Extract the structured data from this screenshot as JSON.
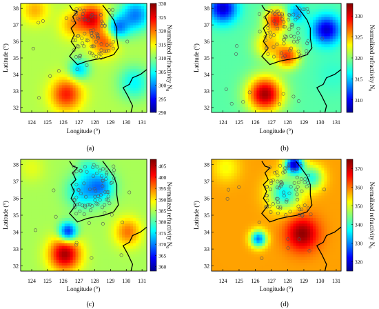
{
  "figure": {
    "panels": [
      {
        "label": "(a)",
        "colorbar_label": "Normalized refractivity N",
        "colorbar_subscript": "0"
      },
      {
        "label": "(b)",
        "colorbar_label": "Normalized refractivity N",
        "colorbar_subscript": "0"
      },
      {
        "label": "(c)",
        "colorbar_label": "Normalized refractivity N",
        "colorbar_subscript": "0"
      },
      {
        "label": "(d)",
        "colorbar_label": "Normalized refractivity N",
        "colorbar_subscript": "0"
      }
    ]
  },
  "chart_data": [
    {
      "type": "heatmap",
      "panel": "(a)",
      "xlabel": "Longitude (°)",
      "ylabel": "Latitude (°)",
      "xlim": [
        123.3,
        131.3
      ],
      "ylim": [
        31.7,
        38.3
      ],
      "xticks": [
        124,
        125,
        126,
        127,
        128,
        129,
        130,
        131
      ],
      "yticks": [
        32,
        33,
        34,
        35,
        36,
        37,
        38
      ],
      "colorbar": {
        "label": "Normalized refractivity N0",
        "min": 290,
        "max": 330,
        "ticks": [
          290,
          295,
          300,
          305,
          310,
          315,
          320,
          325,
          330
        ]
      },
      "baseline": 312,
      "hotspots": [
        {
          "lon": 126.2,
          "lat": 32.8,
          "value": 324,
          "spread": 0.7
        },
        {
          "lon": 127.8,
          "lat": 37.4,
          "value": 326,
          "spread": 0.6
        },
        {
          "lon": 128.6,
          "lat": 36.0,
          "value": 322,
          "spread": 0.6
        },
        {
          "lon": 126.6,
          "lat": 37.0,
          "value": 318,
          "spread": 0.6
        },
        {
          "lon": 129.4,
          "lat": 36.8,
          "value": 300,
          "spread": 0.5
        },
        {
          "lon": 130.6,
          "lat": 37.6,
          "value": 300,
          "spread": 0.7
        },
        {
          "lon": 127.0,
          "lat": 34.3,
          "value": 303,
          "spread": 0.45
        },
        {
          "lon": 124.2,
          "lat": 37.9,
          "value": 318,
          "spread": 0.6
        },
        {
          "lon": 130.5,
          "lat": 33.5,
          "value": 305,
          "spread": 0.7
        }
      ]
    },
    {
      "type": "heatmap",
      "panel": "(b)",
      "xlabel": "Longitude (°)",
      "ylabel": "Latitude (°)",
      "xlim": [
        123.3,
        131.3
      ],
      "ylim": [
        31.7,
        38.3
      ],
      "xticks": [
        124,
        125,
        126,
        127,
        128,
        129,
        130,
        131
      ],
      "yticks": [
        32,
        33,
        34,
        35,
        36,
        37,
        38
      ],
      "colorbar": {
        "label": "Normalized refractivity N0",
        "min": 307,
        "max": 333,
        "ticks": [
          310,
          315,
          320,
          325,
          330
        ]
      },
      "baseline": 319,
      "hotspots": [
        {
          "lon": 126.6,
          "lat": 32.8,
          "value": 332,
          "spread": 0.75
        },
        {
          "lon": 127.3,
          "lat": 37.3,
          "value": 329,
          "spread": 0.5
        },
        {
          "lon": 128.0,
          "lat": 35.1,
          "value": 328,
          "spread": 0.5
        },
        {
          "lon": 126.8,
          "lat": 35.8,
          "value": 325,
          "spread": 0.6
        },
        {
          "lon": 124.0,
          "lat": 38.0,
          "value": 309,
          "spread": 0.6
        },
        {
          "lon": 130.4,
          "lat": 36.7,
          "value": 309,
          "spread": 0.6
        },
        {
          "lon": 128.5,
          "lat": 37.7,
          "value": 314,
          "spread": 0.4
        },
        {
          "lon": 130.8,
          "lat": 34.0,
          "value": 318,
          "spread": 0.8
        }
      ]
    },
    {
      "type": "heatmap",
      "panel": "(c)",
      "xlabel": "Longitude (°)",
      "ylabel": "Latitude (°)",
      "xlim": [
        123.3,
        131.3
      ],
      "ylim": [
        31.7,
        38.3
      ],
      "xticks": [
        124,
        125,
        126,
        127,
        128,
        129,
        130,
        131
      ],
      "yticks": [
        32,
        33,
        34,
        35,
        36,
        37,
        38
      ],
      "colorbar": {
        "label": "Normalized refractivity N0",
        "min": 358,
        "max": 408,
        "ticks": [
          360,
          365,
          370,
          375,
          380,
          385,
          390,
          395,
          400,
          405
        ]
      },
      "baseline": 385,
      "hotspots": [
        {
          "lon": 126.1,
          "lat": 32.7,
          "value": 406,
          "spread": 0.7
        },
        {
          "lon": 130.1,
          "lat": 34.0,
          "value": 396,
          "spread": 0.6
        },
        {
          "lon": 127.2,
          "lat": 36.4,
          "value": 375,
          "spread": 0.7
        },
        {
          "lon": 128.4,
          "lat": 36.7,
          "value": 372,
          "spread": 0.6
        },
        {
          "lon": 126.3,
          "lat": 34.0,
          "value": 364,
          "spread": 0.4
        },
        {
          "lon": 127.6,
          "lat": 37.8,
          "value": 380,
          "spread": 0.5
        },
        {
          "lon": 124.0,
          "lat": 37.8,
          "value": 388,
          "spread": 0.6
        }
      ]
    },
    {
      "type": "heatmap",
      "panel": "(d)",
      "xlabel": "Longitude (°)",
      "ylabel": "Latitude (°)",
      "xlim": [
        123.3,
        131.3
      ],
      "ylim": [
        31.7,
        38.3
      ],
      "xticks": [
        124,
        125,
        126,
        127,
        128,
        129,
        130,
        131
      ],
      "yticks": [
        32,
        33,
        34,
        35,
        36,
        37,
        38
      ],
      "colorbar": {
        "label": "Normalized refractivity N0",
        "min": 315,
        "max": 375,
        "ticks": [
          320,
          330,
          340,
          350,
          360,
          370
        ]
      },
      "baseline": 358,
      "hotspots": [
        {
          "lon": 128.9,
          "lat": 33.9,
          "value": 374,
          "spread": 0.7
        },
        {
          "lon": 127.8,
          "lat": 36.3,
          "value": 337,
          "spread": 0.7
        },
        {
          "lon": 128.4,
          "lat": 38.0,
          "value": 320,
          "spread": 0.4
        },
        {
          "lon": 126.2,
          "lat": 33.6,
          "value": 330,
          "spread": 0.35
        },
        {
          "lon": 129.5,
          "lat": 37.2,
          "value": 340,
          "spread": 0.5
        },
        {
          "lon": 124.2,
          "lat": 37.8,
          "value": 352,
          "spread": 0.6
        }
      ]
    }
  ]
}
